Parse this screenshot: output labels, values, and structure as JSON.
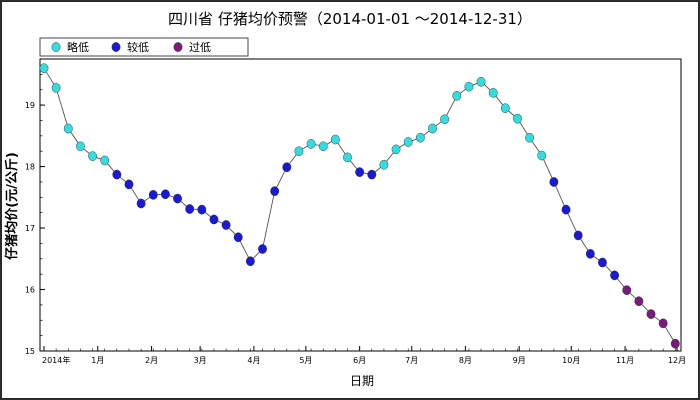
{
  "chart_data": {
    "type": "scatter",
    "title": "四川省 仔猪均价预警（2014-01-01 ～2014-12-31）",
    "xlabel": "日期",
    "ylabel": "仔猪均价(元/公斤)",
    "ylim": [
      15,
      19.75
    ],
    "yticks": [
      15,
      16,
      17,
      18,
      19
    ],
    "xticks": [
      {
        "label": "2014年",
        "week": 0
      },
      {
        "label": "1月",
        "week": 4.43
      },
      {
        "label": "2月",
        "week": 8.86
      },
      {
        "label": "3月",
        "week": 12.86
      },
      {
        "label": "4月",
        "week": 17.29
      },
      {
        "label": "5月",
        "week": 21.57
      },
      {
        "label": "6月",
        "week": 26
      },
      {
        "label": "7月",
        "week": 30.29
      },
      {
        "label": "8月",
        "week": 34.71
      },
      {
        "label": "9月",
        "week": 39.14
      },
      {
        "label": "10月",
        "week": 43.43
      },
      {
        "label": "11月",
        "week": 47.86
      },
      {
        "label": "12月",
        "week": 52.14
      }
    ],
    "xlim_weeks": [
      0,
      52.14
    ],
    "grid": false,
    "legend": "top-left",
    "line_color": "#555555",
    "series": [
      {
        "name": "略低",
        "color": "#33dddd",
        "points": [
          [
            0,
            19.6
          ],
          [
            1,
            19.28
          ],
          [
            2,
            18.62
          ],
          [
            3,
            18.33
          ],
          [
            4,
            18.17
          ],
          [
            5,
            18.1
          ],
          [
            21,
            18.25
          ],
          [
            22,
            18.37
          ],
          [
            23,
            18.33
          ],
          [
            24,
            18.44
          ],
          [
            25,
            18.15
          ],
          [
            28,
            18.03
          ],
          [
            29,
            18.28
          ],
          [
            30,
            18.4
          ],
          [
            31,
            18.47
          ],
          [
            32,
            18.62
          ],
          [
            33,
            18.77
          ],
          [
            34,
            19.15
          ],
          [
            35,
            19.3
          ],
          [
            36,
            19.38
          ],
          [
            37,
            19.2
          ],
          [
            38,
            18.95
          ],
          [
            39,
            18.78
          ],
          [
            40,
            18.47
          ],
          [
            41,
            18.18
          ]
        ]
      },
      {
        "name": "较低",
        "color": "#1a1ad6",
        "points": [
          [
            6,
            17.87
          ],
          [
            7,
            17.71
          ],
          [
            8,
            17.4
          ],
          [
            9,
            17.54
          ],
          [
            10,
            17.55
          ],
          [
            11,
            17.48
          ],
          [
            12,
            17.31
          ],
          [
            13,
            17.3
          ],
          [
            14,
            17.14
          ],
          [
            15,
            17.05
          ],
          [
            16,
            16.85
          ],
          [
            17,
            16.46
          ],
          [
            18,
            16.66
          ],
          [
            19,
            17.6
          ],
          [
            20,
            17.99
          ],
          [
            26,
            17.91
          ],
          [
            27,
            17.87
          ],
          [
            42,
            17.75
          ],
          [
            43,
            17.3
          ],
          [
            44,
            16.88
          ],
          [
            45,
            16.58
          ],
          [
            46,
            16.44
          ],
          [
            47,
            16.23
          ]
        ]
      },
      {
        "name": "过低",
        "color": "#7a1a7a",
        "points": [
          [
            48,
            15.99
          ],
          [
            49,
            15.81
          ],
          [
            50,
            15.6
          ],
          [
            51,
            15.45
          ],
          [
            52,
            15.12
          ]
        ]
      }
    ]
  }
}
